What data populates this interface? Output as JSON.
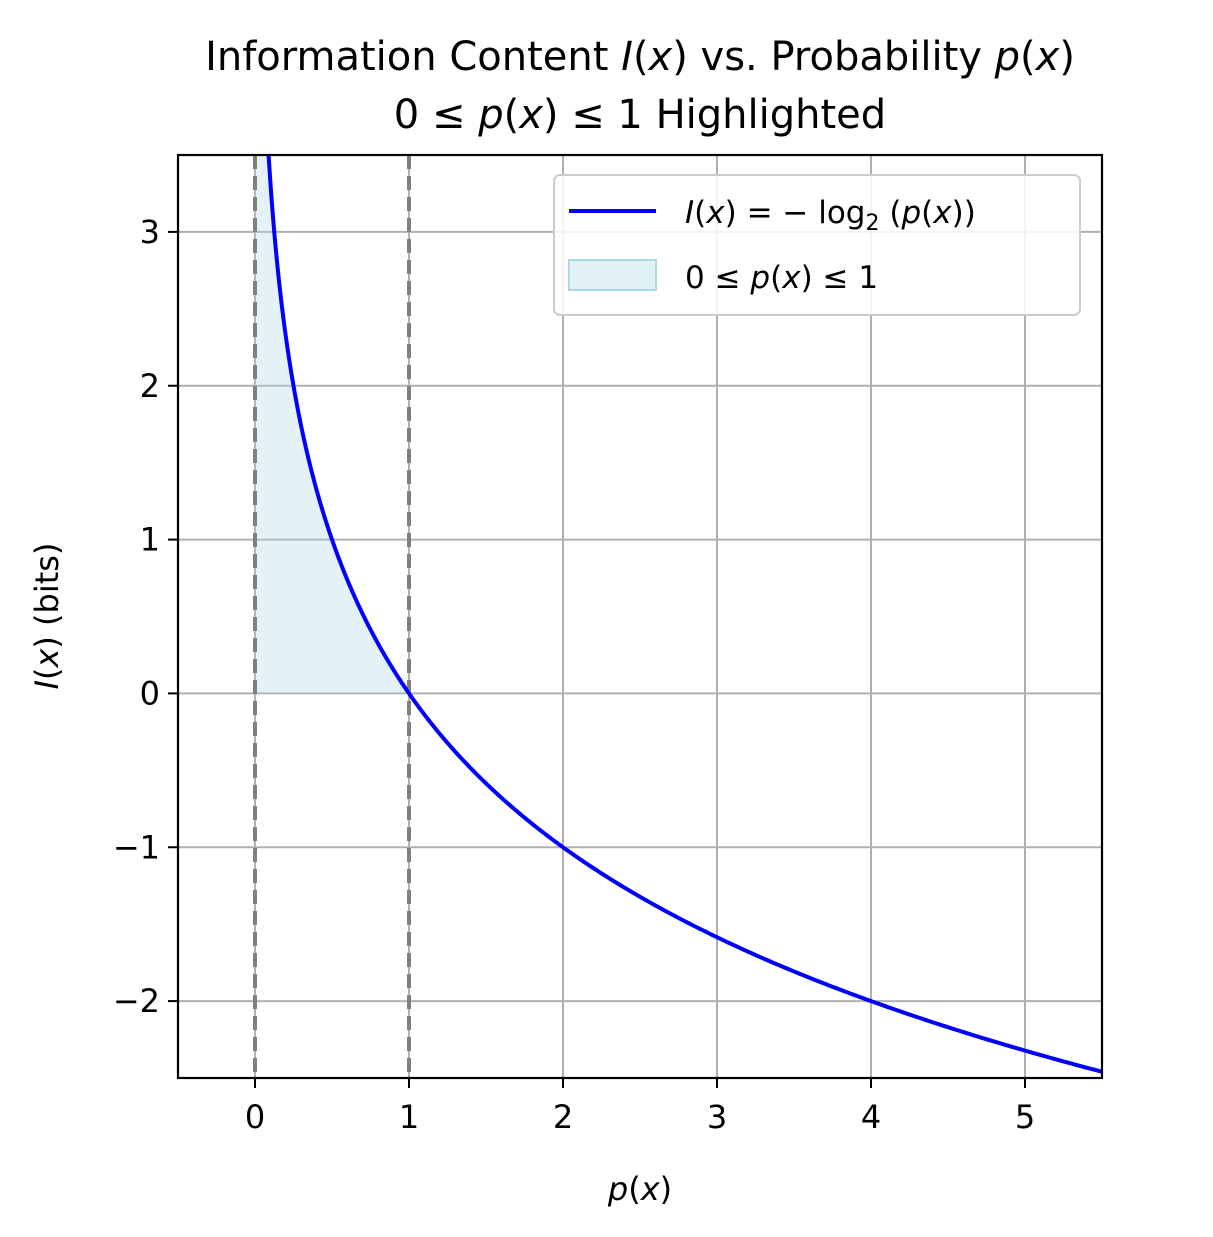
{
  "chart_data": {
    "type": "line",
    "title": {
      "line1_prefix": "Information Content ",
      "line1_var1": "I",
      "line1_mid": "(",
      "line1_var1b": "x",
      "line1_mid2": ") vs. Probability ",
      "line1_var2": "p",
      "line1_par_open": "(",
      "line1_var2b": "x",
      "line1_par_close": ")",
      "line2_a": "0 ≤ ",
      "line2_p": "p",
      "line2_open": "(",
      "line2_x": "x",
      "line2_close": ") ≤ 1 Highlighted"
    },
    "xlabel": {
      "var": "p",
      "open": "(",
      "x": "x",
      "close": ")"
    },
    "ylabel": {
      "var": "I",
      "open": "(",
      "x": "x",
      "close": ") (bits)"
    },
    "xlim": [
      -0.5,
      5.5
    ],
    "ylim": [
      -2.5,
      3.5
    ],
    "xticks": [
      0,
      1,
      2,
      3,
      4,
      5
    ],
    "xtick_labels": [
      "0",
      "1",
      "2",
      "3",
      "4",
      "5"
    ],
    "yticks": [
      -2,
      -1,
      0,
      1,
      2,
      3
    ],
    "ytick_labels": [
      "−2",
      "−1",
      "0",
      "1",
      "2",
      "3"
    ],
    "grid": true,
    "legend_placement": "upper-right",
    "series": [
      {
        "kind": "line",
        "function": "-log2(p)",
        "domain": [
          0.01,
          5.5
        ],
        "color": "#0000ff",
        "legend": {
          "I": "I",
          "open1": "(",
          "x": "x",
          "mid": ") = − log",
          "sub": "2",
          "open2": " (",
          "p": "p",
          "open3": "(",
          "x2": "x",
          "close": "))"
        }
      },
      {
        "kind": "fill_between",
        "domain": [
          0,
          1
        ],
        "lower": 0,
        "upper": "-log2(p)",
        "color": "#add8e6",
        "legend": {
          "a": "0 ≤ ",
          "p": "p",
          "open": "(",
          "x": "x",
          "close": ") ≤ 1"
        }
      }
    ],
    "vlines": [
      {
        "x": 0,
        "style": "dashed",
        "color": "#808080"
      },
      {
        "x": 1,
        "style": "dashed",
        "color": "#808080"
      }
    ]
  }
}
